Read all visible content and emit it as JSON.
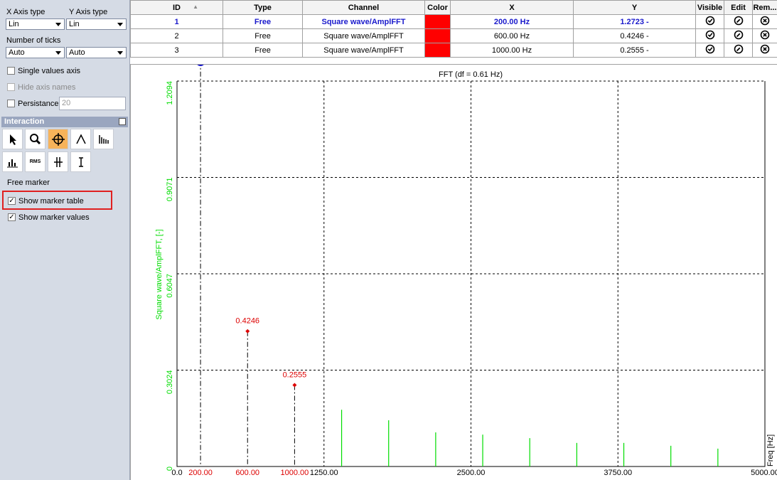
{
  "panel": {
    "x_axis_type_label": "X Axis type",
    "y_axis_type_label": "Y Axis type",
    "x_axis_type": "Lin",
    "y_axis_type": "Lin",
    "ticks_label": "Number of ticks",
    "x_ticks": "Auto",
    "y_ticks": "Auto",
    "single_values_axis": "Single values axis",
    "hide_axis_names": "Hide axis names",
    "persistance": "Persistance",
    "persistance_value": "20",
    "interaction": "Interaction",
    "rms": "RMS",
    "mode": "Free marker",
    "show_marker_table": "Show marker table",
    "show_marker_values": "Show marker values"
  },
  "table": {
    "headers": [
      "ID",
      "Type",
      "Channel",
      "Color",
      "X",
      "Y",
      "Visible",
      "Edit",
      "Rem..."
    ],
    "selected": 0,
    "rows": [
      {
        "id": "1",
        "type": "Free",
        "channel": "Square wave/AmplFFT",
        "color": "#ff0000",
        "x": "200.00 Hz",
        "y": "1.2723 -"
      },
      {
        "id": "2",
        "type": "Free",
        "channel": "Square wave/AmplFFT",
        "color": "#ff0000",
        "x": "600.00 Hz",
        "y": "0.4246 -"
      },
      {
        "id": "3",
        "type": "Free",
        "channel": "Square wave/AmplFFT",
        "color": "#ff0000",
        "x": "1000.00 Hz",
        "y": "0.2555 -"
      }
    ]
  },
  "chart_data": {
    "type": "stem",
    "title": "FFT (df = 0.61 Hz)",
    "x_label": "Freq [Hz]",
    "y_label": "Square wave/AmplFFT, [-]",
    "xlim": [
      0,
      5000
    ],
    "ylim": [
      0,
      1.2094
    ],
    "xticks": [
      {
        "value": 0,
        "label": "0.0"
      },
      {
        "value": 1250,
        "label": "1250.00"
      },
      {
        "value": 2500,
        "label": "2500.00"
      },
      {
        "value": 3750,
        "label": "3750.00"
      },
      {
        "value": 5000,
        "label": "5000.00"
      }
    ],
    "yticks": [
      0,
      0.3024,
      0.6047,
      0.9071,
      1.2094
    ],
    "grid": true,
    "series": [
      {
        "color": "#00dd00",
        "x": [
          1400,
          1800,
          2200,
          2600,
          3000,
          3400,
          3800,
          4200,
          4600
        ],
        "values": [
          0.178,
          0.145,
          0.107,
          0.1,
          0.089,
          0.074,
          0.074,
          0.065,
          0.056
        ]
      }
    ],
    "markers": {
      "color": "#dd0000",
      "selected": 0,
      "x": [
        200,
        600,
        1000
      ],
      "x_value_labels": [
        "200.00",
        "600.00",
        "1000.00"
      ],
      "values": [
        1.2723,
        0.4246,
        0.2555
      ]
    }
  }
}
